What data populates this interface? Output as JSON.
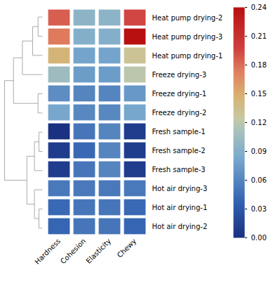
{
  "chart_data": {
    "type": "heatmap",
    "columns": [
      "Hardness",
      "Cohesion",
      "Elasticity",
      "Chewy"
    ],
    "rows": [
      "Heat pump drying-2",
      "Heat pump drying-3",
      "Heat pump drying-1",
      "Freeze drying-3",
      "Freeze drying-1",
      "Freeze drying-2",
      "Fresh sample-1",
      "Fresh sample-2",
      "Fresh sample-3",
      "Hot air drying-3",
      "Hot air drying-1",
      "Hot air drying-2"
    ],
    "values": [
      [
        0.185,
        0.095,
        0.095,
        0.195
      ],
      [
        0.175,
        0.09,
        0.09,
        0.24
      ],
      [
        0.145,
        0.08,
        0.08,
        0.13
      ],
      [
        0.105,
        0.075,
        0.075,
        0.12
      ],
      [
        0.065,
        0.06,
        0.06,
        0.072
      ],
      [
        0.082,
        0.062,
        0.062,
        0.082
      ],
      [
        0.001,
        0.05,
        0.06,
        0.01
      ],
      [
        0.01,
        0.042,
        0.06,
        0.01
      ],
      [
        0.01,
        0.05,
        0.06,
        0.01
      ],
      [
        0.052,
        0.052,
        0.052,
        0.052
      ],
      [
        0.042,
        0.05,
        0.05,
        0.042
      ],
      [
        0.04,
        0.05,
        0.05,
        0.04
      ]
    ],
    "colorbar": {
      "range": [
        0.0,
        0.24
      ],
      "ticks": [
        {
          "value": 0.0,
          "label": "0.00"
        },
        0.03,
        0.06,
        0.09,
        0.12,
        0.15,
        0.18,
        0.21,
        0.24
      ]
    },
    "colormap": [
      [
        0.0,
        "#1a3080"
      ],
      [
        0.15,
        "#3060b0"
      ],
      [
        0.35,
        "#7aaace"
      ],
      [
        0.48,
        "#b0c4b8"
      ],
      [
        0.52,
        "#c8c8a0"
      ],
      [
        0.62,
        "#d8b070"
      ],
      [
        0.72,
        "#e08060"
      ],
      [
        0.82,
        "#d04040"
      ],
      [
        1.0,
        "#b81010"
      ]
    ],
    "dendrogram": {
      "color": "#aaaaaa",
      "merges": [
        [
          0,
          1,
          1.0
        ],
        [
          12,
          2,
          2.2
        ],
        [
          13,
          3,
          4.5
        ],
        [
          4,
          5,
          1.0
        ],
        [
          14,
          15,
          6.5
        ],
        [
          6,
          7,
          0.8
        ],
        [
          17,
          8,
          1.8
        ],
        [
          10,
          11,
          0.8
        ],
        [
          9,
          19,
          1.8
        ],
        [
          18,
          20,
          3.5
        ],
        [
          16,
          21,
          8.5
        ]
      ]
    }
  }
}
